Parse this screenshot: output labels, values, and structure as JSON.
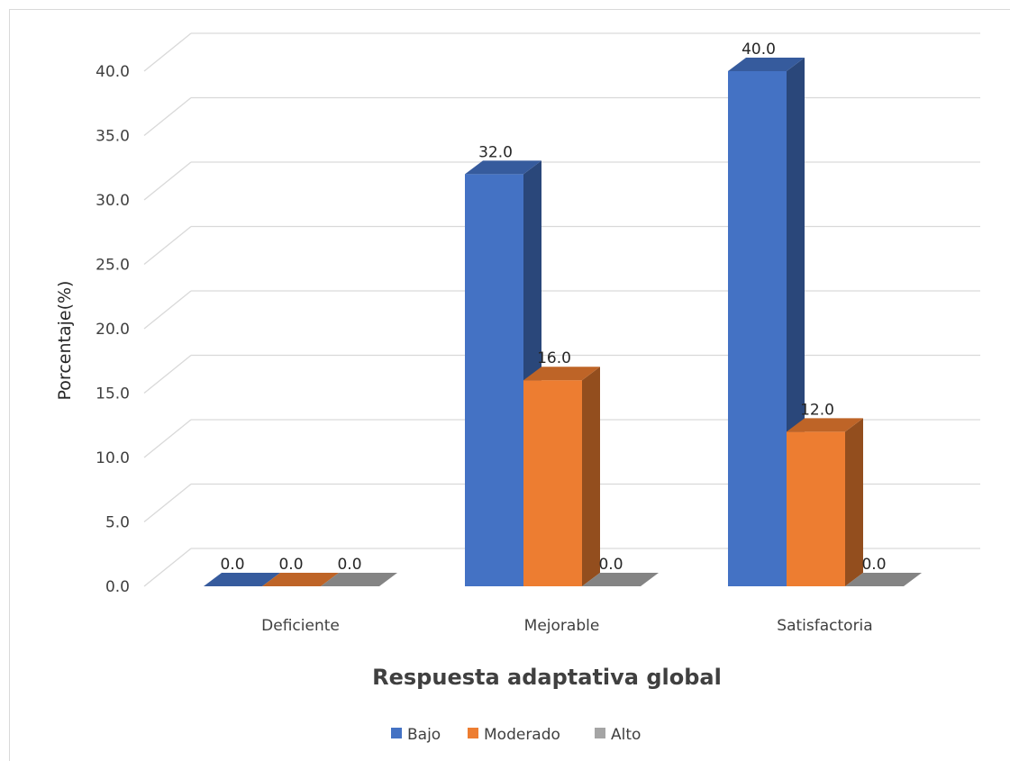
{
  "chart_data": {
    "type": "bar",
    "title": "",
    "xlabel": "Respuesta adaptativa global",
    "ylabel": "Porcentaje(%)",
    "ylim": [
      0,
      40
    ],
    "yticks": [
      "0.0",
      "5.0",
      "10.0",
      "15.0",
      "20.0",
      "25.0",
      "30.0",
      "35.0",
      "40.0"
    ],
    "categories": [
      "Deficiente",
      "Mejorable",
      "Satisfactoria"
    ],
    "series": [
      {
        "name": "Bajo",
        "values": [
          0.0,
          32.0,
          40.0
        ],
        "labels": [
          "0.0",
          "32.0",
          "40.0"
        ],
        "color": "#4472c4"
      },
      {
        "name": "Moderado",
        "values": [
          0.0,
          16.0,
          12.0
        ],
        "labels": [
          "0.0",
          "16.0",
          "12.0"
        ],
        "color": "#ed7d31"
      },
      {
        "name": "Alto",
        "values": [
          0.0,
          0.0,
          0.0
        ],
        "labels": [
          "0.0",
          "0.0",
          "0.0"
        ],
        "color": "#a5a5a5"
      }
    ],
    "grid": true,
    "legend_position": "bottom",
    "style": "3d-clustered-column"
  }
}
